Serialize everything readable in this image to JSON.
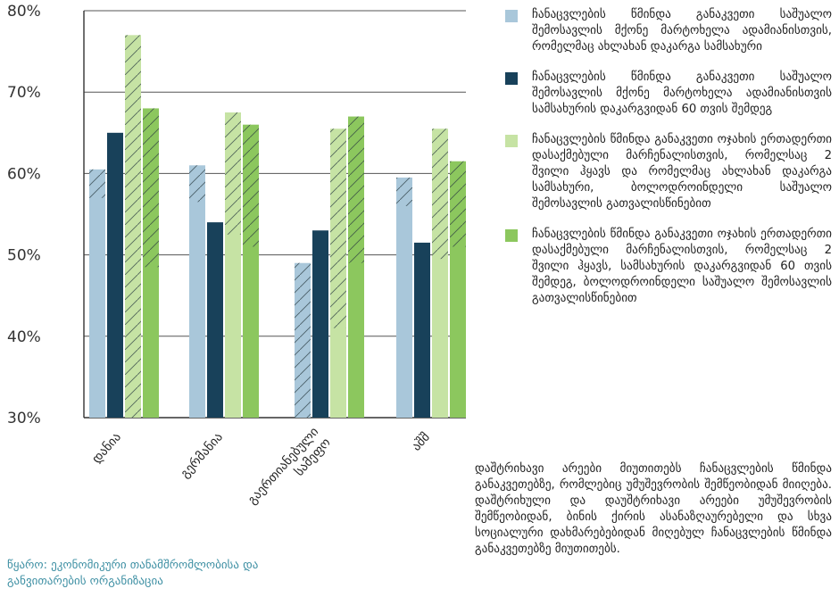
{
  "chart_data": {
    "type": "bar",
    "categories": [
      "დანია",
      "გერმანია",
      "გაერთიანებული სამეფო",
      "აშშ"
    ],
    "ylim": [
      30,
      80
    ],
    "yticks": [
      "30%",
      "40%",
      "50%",
      "60%",
      "70%",
      "80%"
    ],
    "ytick_values": [
      30,
      40,
      50,
      60,
      70,
      80
    ],
    "grid": "horizontal",
    "legend_position": "right",
    "series": [
      {
        "name": "ჩანაცვლების წმინდა განაკვეთი საშუალო შემოსავლის მქონე მარტოხელა ადამიანისთვის, რომელმაც ახლახან დაკარგა სამსახური",
        "values": [
          60.5,
          61,
          49,
          59.5
        ],
        "color": "#a9c7da",
        "hatched_down_to": [
          57,
          56.5,
          30,
          56
        ]
      },
      {
        "name": "ჩანაცვლების წმინდა განაკვეთი საშუალო შემოსავლის მქონე მარტოხელა ადამიანისთვის სამსახურის დაკარგვიდან 60 თვის შემდეგ",
        "values": [
          65,
          54,
          53,
          51.5
        ],
        "color": "#18415a",
        "hatched_down_to": [
          null,
          null,
          null,
          null
        ]
      },
      {
        "name": "ჩანაცვლების წმინდა განაკვეთი ოჯახის ერთადერთი დასაქმებული მარჩენალისთვის, რომელსაც 2 შვილი ჰყავს და რომელმაც ახლახან დაკარგა სამსახური, ბოლოდროინდელი საშუალო შემოსავლის გათვალისწინებით",
        "values": [
          77,
          67.5,
          65.5,
          65.5
        ],
        "color": "#c6e3a4",
        "hatched_down_to": [
          30,
          52.5,
          41,
          49.5
        ]
      },
      {
        "name": "ჩანაცვლების წმინდა განაკვეთი ოჯახის ერთადერთი დასაქმებული მარჩენალისთვის, რომელსაც 2 შვილი ჰყავს, სამსახურის დაკარგვიდან 60 თვის შემდეგ, ბოლოდროინდელი საშუალო შემოსავლის გათვალისწინებით",
        "values": [
          68,
          66,
          67,
          61.5
        ],
        "color": "#8cc75e",
        "hatched_down_to": [
          48.5,
          51,
          49,
          51
        ]
      }
    ]
  },
  "note": "დაშტრიხავი არეები მიუთითებს ჩანაცვლების წმინდა განაკვეთებზე, რომლებიც უმუშევრობის შემწეობიდან მიიღება. დაშტრიხული და დაუშტრიხავი არეები უმუშევრობის შემწეობიდან, ბინის ქირის ასანაზღაურებელი და სხვა სოციალური დახმარებებიდან მიღებულ ჩანაცვლების წმინდა განაკვეთებზე მიუთითებს.",
  "source": "წყარო: ეკონომიკური თანამშრომლობისა და განვითარების ორგანიზაცია"
}
